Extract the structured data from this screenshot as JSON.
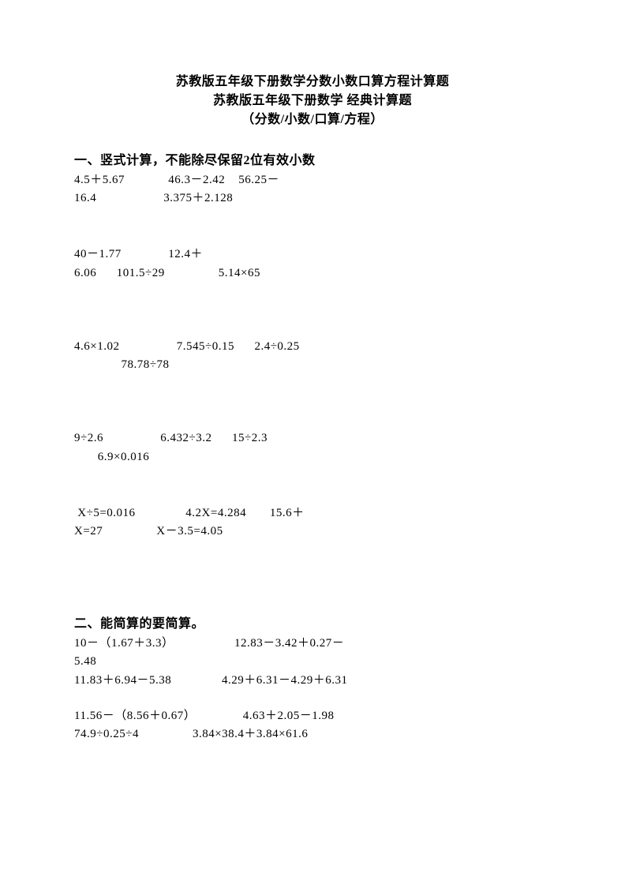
{
  "title": {
    "line1": "苏教版五年级下册数学分数小数口算方程计算题",
    "line2": "苏教版五年级下册数学 经典计算题",
    "line3": "（分数/小数/口算/方程）"
  },
  "section1": {
    "heading": "一、竖式计算，不能除尽保留2位有效小数",
    "row1a": "4.5＋5.67             46.3－2.42    56.25－",
    "row1b": "16.4                    3.375＋2.128",
    "row2a": "40－1.77              12.4＋",
    "row2b": "6.06      101.5÷29                5.14×65",
    "row3a": "4.6×1.02                 7.545÷0.15      2.4÷0.25",
    "row3b": "              78.78÷78",
    "row4a": "9÷2.6                 6.432÷3.2      15÷2.3",
    "row4b": "       6.9×0.016",
    "row5a": " X÷5=0.016               4.2X=4.284       15.6＋",
    "row5b": "X=27                X－3.5=4.05"
  },
  "section2": {
    "heading": "二、能简算的要简算。",
    "row1a": "10－（1.67＋3.3）                  12.83－3.42＋0.27－",
    "row1b": "5.48",
    "row2": "11.83＋6.94－5.38               4.29＋6.31－4.29＋6.31",
    "row3": "11.56－（8.56＋0.67）              4.63＋2.05－1.98",
    "row4": "74.9÷0.25÷4                3.84×38.4＋3.84×61.6"
  }
}
